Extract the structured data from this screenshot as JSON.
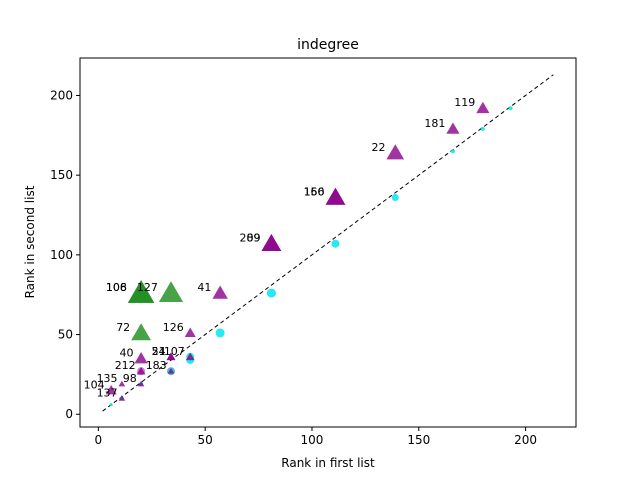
{
  "chart_data": {
    "type": "scatter",
    "title": "indegree",
    "xlabel": "Rank in first list",
    "ylabel": "Rank in second list",
    "xlim": [
      -8.6,
      223.6
    ],
    "ylim": [
      -8.0,
      223.5
    ],
    "x_ticks": [
      0,
      50,
      100,
      150,
      200
    ],
    "y_ticks": [
      0,
      50,
      100,
      150,
      200
    ],
    "grid": false,
    "legend": "none",
    "reference_line": {
      "from": [
        2,
        2
      ],
      "to": [
        213,
        213
      ],
      "style": "dashed",
      "color": "#000000"
    },
    "circles": [
      {
        "x": 193,
        "y": 192,
        "size": 4,
        "color": "#00e5ee"
      },
      {
        "x": 180,
        "y": 179,
        "size": 4,
        "color": "#00e5ee"
      },
      {
        "x": 166,
        "y": 165,
        "size": 4,
        "color": "#00e5ee"
      },
      {
        "x": 139,
        "y": 136,
        "size": 7,
        "color": "#00e5ee"
      },
      {
        "x": 111,
        "y": 107,
        "size": 8,
        "color": "#00e5ee"
      },
      {
        "x": 81,
        "y": 76,
        "size": 9,
        "color": "#00e5ee"
      },
      {
        "x": 57,
        "y": 51,
        "size": 9,
        "color": "#00e5ee"
      },
      {
        "x": 43,
        "y": 36,
        "size": 8,
        "color": "#00e5ee"
      },
      {
        "x": 43,
        "y": 34,
        "size": 8,
        "color": "#00e5ee"
      },
      {
        "x": 34,
        "y": 27,
        "size": 8,
        "color": "#22b0dd"
      },
      {
        "x": 20,
        "y": 27,
        "size": 8,
        "color": "#cc66cc"
      },
      {
        "x": 20,
        "y": 19,
        "size": 4,
        "color": "#00e5ee"
      },
      {
        "x": 11,
        "y": 10,
        "size": 4,
        "color": "#00e5ee"
      },
      {
        "x": 6,
        "y": 6,
        "size": 3,
        "color": "#00e5ee"
      }
    ],
    "triangles": [
      {
        "x": 180,
        "y": 192,
        "size": 12,
        "color": "#8b008b",
        "label": "119"
      },
      {
        "x": 166,
        "y": 179,
        "size": 12,
        "color": "#8b008b",
        "label": "181"
      },
      {
        "x": 139,
        "y": 164,
        "size": 16,
        "color": "#8b008b",
        "label": "22"
      },
      {
        "x": 111,
        "y": 136,
        "size": 18,
        "color": "#8b008b",
        "label": "156"
      },
      {
        "x": 111,
        "y": 136,
        "size": 18,
        "color": "#8b008b",
        "label": "160"
      },
      {
        "x": 81,
        "y": 107,
        "size": 18,
        "color": "#8b008b",
        "label": "209"
      },
      {
        "x": 81,
        "y": 107,
        "size": 18,
        "color": "#8b008b",
        "label": "89"
      },
      {
        "x": 57,
        "y": 76,
        "size": 14,
        "color": "#8b008b",
        "label": "41"
      },
      {
        "x": 43,
        "y": 51,
        "size": 10,
        "color": "#8b008b",
        "label": "126"
      },
      {
        "x": 20,
        "y": 76,
        "size": 24,
        "color": "#1a8c1a",
        "label": "106"
      },
      {
        "x": 20,
        "y": 76,
        "size": 24,
        "color": "#1a8c1a",
        "label": "108"
      },
      {
        "x": 34,
        "y": 76,
        "size": 22,
        "color": "#1a8c1a",
        "label": "127"
      },
      {
        "x": 20,
        "y": 51,
        "size": 18,
        "color": "#1a8c1a",
        "label": "72"
      },
      {
        "x": 20,
        "y": 35,
        "size": 12,
        "color": "#8b008b",
        "label": "40"
      },
      {
        "x": 34,
        "y": 36,
        "size": 8,
        "color": "#8b008b",
        "label": "51"
      },
      {
        "x": 34,
        "y": 36,
        "size": 8,
        "color": "#8b008b",
        "label": "24"
      },
      {
        "x": 43,
        "y": 36,
        "size": 8,
        "color": "#8b008b",
        "label": "107"
      },
      {
        "x": 20,
        "y": 27,
        "size": 8,
        "color": "#8b008b",
        "label": "212"
      },
      {
        "x": 34,
        "y": 27,
        "size": 6,
        "color": "#8b008b",
        "label": "183"
      },
      {
        "x": 20,
        "y": 19,
        "size": 6,
        "color": "#8b008b",
        "label": "98"
      },
      {
        "x": 11,
        "y": 19,
        "size": 6,
        "color": "#8b008b",
        "label": "135"
      },
      {
        "x": 6,
        "y": 15,
        "size": 10,
        "color": "#8b008b",
        "label": "104"
      },
      {
        "x": 11,
        "y": 10,
        "size": 6,
        "color": "#8b008b",
        "label": "137"
      }
    ]
  }
}
